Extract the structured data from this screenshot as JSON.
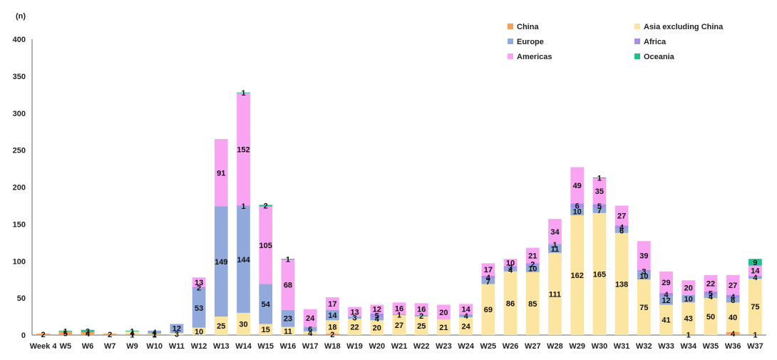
{
  "chart_data": {
    "type": "bar",
    "stacked": true,
    "title": "",
    "xlabel": "",
    "ylabel": "(n)",
    "ylim": [
      0,
      400
    ],
    "yticks": [
      0,
      50,
      100,
      150,
      200,
      250,
      300,
      350,
      400
    ],
    "grid": false,
    "legend_position": "top-right",
    "categories": [
      "Week 4",
      "W5",
      "W6",
      "W7",
      "W9",
      "W10",
      "W11",
      "W12",
      "W13",
      "W14",
      "W15",
      "W16",
      "W17",
      "W18",
      "W19",
      "W20",
      "W21",
      "W22",
      "W23",
      "W24",
      "W25",
      "W26",
      "W27",
      "W28",
      "W29",
      "W30",
      "W31",
      "W32",
      "W33",
      "W34",
      "W35",
      "W36",
      "W37"
    ],
    "series": [
      {
        "name": "China",
        "color": "#F4A259",
        "values": [
          2,
          5,
          4,
          2,
          1,
          1,
          0,
          0,
          0,
          0,
          0,
          0,
          1,
          2,
          0,
          0,
          0,
          0,
          0,
          0,
          0,
          0,
          0,
          0,
          0,
          0,
          0,
          0,
          0,
          1,
          0,
          4,
          1
        ],
        "labels": [
          "2",
          "5",
          "4",
          "2",
          "1",
          "1",
          "",
          "",
          "",
          "",
          "",
          "",
          "",
          "2",
          "",
          "",
          "",
          "",
          "",
          "",
          "",
          "",
          "",
          "",
          "",
          "",
          "",
          "",
          "",
          "1",
          "",
          "4",
          "1"
        ]
      },
      {
        "name": "Asia excluding China",
        "color": "#FCE5A0",
        "values": [
          0,
          0,
          0,
          0,
          4,
          1,
          3,
          10,
          25,
          30,
          15,
          11,
          4,
          18,
          22,
          20,
          27,
          25,
          21,
          24,
          69,
          86,
          85,
          111,
          162,
          165,
          138,
          75,
          41,
          43,
          50,
          40,
          75
        ],
        "labels": [
          "",
          "",
          "",
          "",
          "4",
          "1",
          "3",
          "10",
          "25",
          "30",
          "15",
          "11",
          "4",
          "18",
          "22",
          "20",
          "27",
          "25",
          "21",
          "24",
          "69",
          "86",
          "85",
          "111",
          "162",
          "165",
          "138",
          "75",
          "41",
          "43",
          "50",
          "40",
          "75"
        ]
      },
      {
        "name": "Europe",
        "color": "#92A9DB",
        "values": [
          0,
          0,
          0,
          0,
          0,
          4,
          12,
          53,
          149,
          144,
          54,
          23,
          6,
          14,
          3,
          4,
          1,
          2,
          0,
          4,
          7,
          4,
          10,
          11,
          10,
          7,
          6,
          10,
          12,
          10,
          4,
          6,
          4
        ],
        "labels": [
          "",
          "",
          "",
          "",
          "",
          "4",
          "12",
          "53",
          "149",
          "144",
          "54",
          "23",
          "6",
          "14",
          "3",
          "4",
          "1",
          "2",
          "",
          "4",
          "7",
          "4",
          "10",
          "11",
          "10",
          "7",
          "6",
          "10",
          "12",
          "10",
          "4",
          "6",
          "4"
        ]
      },
      {
        "name": "Africa",
        "color": "#A98DEB",
        "values": [
          0,
          0,
          0,
          0,
          0,
          0,
          0,
          2,
          0,
          1,
          0,
          0,
          0,
          0,
          0,
          5,
          0,
          0,
          0,
          0,
          4,
          3,
          2,
          1,
          6,
          5,
          4,
          3,
          4,
          0,
          5,
          4,
          0
        ],
        "labels": [
          "",
          "",
          "",
          "",
          "",
          "",
          "",
          "2",
          "",
          "1",
          "",
          "",
          "",
          "",
          "",
          "5",
          "",
          "",
          "",
          "",
          "4",
          "3",
          "2",
          "1",
          "6",
          "5",
          "4",
          "3",
          "4",
          "",
          "5",
          "4",
          ""
        ]
      },
      {
        "name": "Americas",
        "color": "#F9A4F2",
        "values": [
          0,
          0,
          0,
          0,
          0,
          0,
          0,
          13,
          91,
          152,
          105,
          68,
          24,
          17,
          13,
          12,
          16,
          16,
          20,
          14,
          17,
          10,
          21,
          34,
          49,
          35,
          27,
          39,
          29,
          20,
          22,
          27,
          14
        ],
        "labels": [
          "",
          "",
          "",
          "",
          "",
          "",
          "",
          "13",
          "91",
          "152",
          "105",
          "68",
          "24",
          "17",
          "13",
          "12",
          "16",
          "16",
          "20",
          "14",
          "17",
          "10",
          "21",
          "34",
          "49",
          "35",
          "27",
          "39",
          "29",
          "20",
          "22",
          "27",
          "14"
        ]
      },
      {
        "name": "Oceania",
        "color": "#1EC191",
        "values": [
          0,
          1,
          3,
          0,
          1,
          0,
          0,
          0,
          0,
          1,
          2,
          1,
          0,
          0,
          0,
          0,
          0,
          0,
          0,
          0,
          0,
          0,
          0,
          0,
          0,
          1,
          0,
          0,
          0,
          0,
          0,
          0,
          9
        ],
        "labels": [
          "",
          "1",
          "3",
          "",
          "1",
          "",
          "",
          "",
          "",
          "1",
          "2",
          "1",
          "",
          "",
          "",
          "",
          "",
          "",
          "",
          "",
          "",
          "",
          "",
          "",
          "",
          "1",
          "",
          "",
          "",
          "",
          "",
          "",
          "9"
        ]
      }
    ]
  }
}
